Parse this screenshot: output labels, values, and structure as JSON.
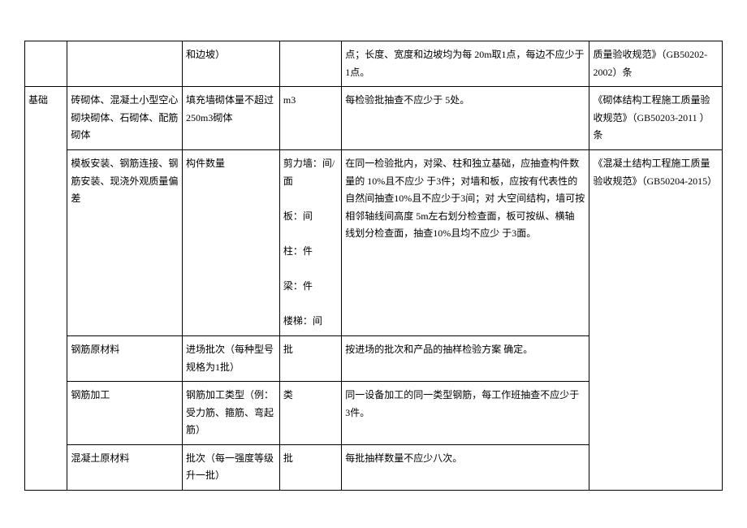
{
  "rows": [
    {
      "c1": "",
      "c2": "",
      "c3": "和边坡）",
      "c4": "",
      "c5": "点；长度、宽度和边坡均为每 20m取1点，每边不应少于 1点。",
      "c6": "质量验收规范》（GB50202-2002）条"
    },
    {
      "c1": "基础",
      "c2": "砖砌体、混凝土小型空心砌块砌体、石砌体、配筋砌体",
      "c3": "填充墙砌体量不超过250m3砌体",
      "c4": "m3",
      "c5": "每检验批抽查不应少于 5处。",
      "c6": "《砌体结构工程施工质量验收规范》（GB50203-2011 ）条"
    },
    {
      "c2": "模板安装、钢筋连接、钢筋安装、现浇外观质量偏差",
      "c3": "构件数量",
      "c4": "剪力墙：间/面\n\n板：间\n\n柱：件\n\n梁：件\n\n楼梯：间",
      "c5": "在同一检验批内，对梁、柱和独立基础，应抽查构件数量的 10%且不应少 于3件；对墙和板，应按有代表性的 自然间抽查10%且不应少于3间；对 大空间结构，墙可按相邻轴线间高度 5m左右划分检查面，板可按纵、横轴 线划分检查面，抽查10%且均不应少 于3面。",
      "c6": "《混凝土结构工程施工质量验收规范》（GB50204-2015）"
    },
    {
      "c2": "钢筋原材料",
      "c3": "进场批次（每种型号规格为1批）",
      "c4": "批",
      "c5": "按进场的批次和产品的抽样检验方案 确定。"
    },
    {
      "c2": "钢筋加工",
      "c3": "钢筋加工类型（例：受力筋、箍筋、弯起筋）",
      "c4": "类",
      "c5": "同一设备加工的同一类型钢筋，每工作班抽查不应少于 3件。"
    },
    {
      "c2": "混凝土原材料",
      "c3": "批次（每一强度等级升一批）",
      "c4": "批",
      "c5": "每批抽样数量不应少八次。"
    }
  ]
}
